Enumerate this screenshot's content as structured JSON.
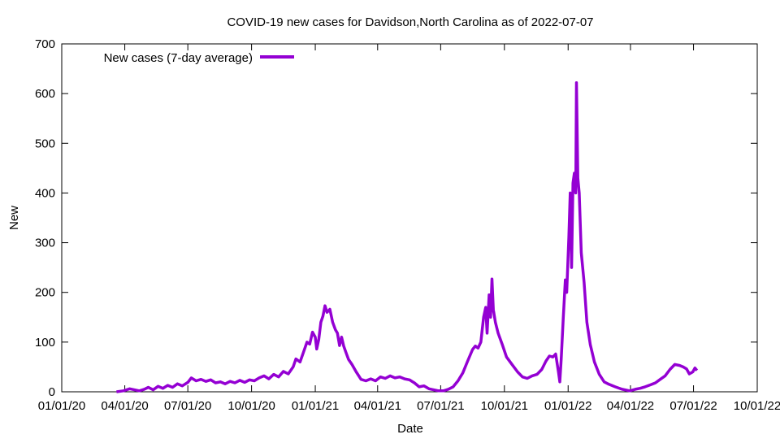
{
  "chart_data": {
    "type": "line",
    "title": "COVID-19 new cases for Davidson,North Carolina as of 2022-07-07",
    "xlabel": "Date",
    "ylabel": "New",
    "xlim": [
      "2020-01-01",
      "2022-10-01"
    ],
    "ylim": [
      0,
      700
    ],
    "x_ticks": [
      "01/01/20",
      "04/01/20",
      "07/01/20",
      "10/01/20",
      "01/01/21",
      "04/01/21",
      "07/01/21",
      "10/01/21",
      "01/01/22",
      "04/01/22",
      "07/01/22",
      "10/01/22"
    ],
    "y_ticks": [
      0,
      100,
      200,
      300,
      400,
      500,
      600,
      700
    ],
    "grid": false,
    "legend_position": "top-left",
    "series": [
      {
        "name": "New cases (7-day average)",
        "color": "#9400d3",
        "points": [
          [
            "2020-03-20",
            0
          ],
          [
            "2020-03-30",
            2
          ],
          [
            "2020-04-08",
            6
          ],
          [
            "2020-04-15",
            4
          ],
          [
            "2020-04-22",
            2
          ],
          [
            "2020-04-29",
            5
          ],
          [
            "2020-05-05",
            9
          ],
          [
            "2020-05-12",
            4
          ],
          [
            "2020-05-19",
            11
          ],
          [
            "2020-05-26",
            7
          ],
          [
            "2020-06-02",
            13
          ],
          [
            "2020-06-09",
            9
          ],
          [
            "2020-06-16",
            16
          ],
          [
            "2020-06-23",
            12
          ],
          [
            "2020-07-01",
            19
          ],
          [
            "2020-07-06",
            28
          ],
          [
            "2020-07-13",
            22
          ],
          [
            "2020-07-20",
            25
          ],
          [
            "2020-07-27",
            21
          ],
          [
            "2020-08-03",
            24
          ],
          [
            "2020-08-10",
            18
          ],
          [
            "2020-08-17",
            20
          ],
          [
            "2020-08-24",
            16
          ],
          [
            "2020-08-31",
            21
          ],
          [
            "2020-09-07",
            18
          ],
          [
            "2020-09-14",
            23
          ],
          [
            "2020-09-21",
            19
          ],
          [
            "2020-09-28",
            24
          ],
          [
            "2020-10-05",
            22
          ],
          [
            "2020-10-12",
            28
          ],
          [
            "2020-10-19",
            32
          ],
          [
            "2020-10-26",
            26
          ],
          [
            "2020-11-02",
            35
          ],
          [
            "2020-11-09",
            30
          ],
          [
            "2020-11-16",
            41
          ],
          [
            "2020-11-23",
            36
          ],
          [
            "2020-11-30",
            50
          ],
          [
            "2020-12-04",
            66
          ],
          [
            "2020-12-10",
            60
          ],
          [
            "2020-12-15",
            80
          ],
          [
            "2020-12-20",
            100
          ],
          [
            "2020-12-24",
            96
          ],
          [
            "2020-12-28",
            120
          ],
          [
            "2021-01-01",
            110
          ],
          [
            "2021-01-03",
            86
          ],
          [
            "2021-01-06",
            105
          ],
          [
            "2021-01-09",
            140
          ],
          [
            "2021-01-12",
            152
          ],
          [
            "2021-01-15",
            173
          ],
          [
            "2021-01-18",
            160
          ],
          [
            "2021-01-22",
            166
          ],
          [
            "2021-01-26",
            140
          ],
          [
            "2021-01-30",
            125
          ],
          [
            "2021-02-02",
            118
          ],
          [
            "2021-02-05",
            93
          ],
          [
            "2021-02-08",
            110
          ],
          [
            "2021-02-11",
            92
          ],
          [
            "2021-02-14",
            80
          ],
          [
            "2021-02-18",
            65
          ],
          [
            "2021-02-23",
            55
          ],
          [
            "2021-03-01",
            40
          ],
          [
            "2021-03-08",
            25
          ],
          [
            "2021-03-15",
            22
          ],
          [
            "2021-03-22",
            26
          ],
          [
            "2021-03-29",
            22
          ],
          [
            "2021-04-05",
            30
          ],
          [
            "2021-04-12",
            27
          ],
          [
            "2021-04-19",
            32
          ],
          [
            "2021-04-26",
            28
          ],
          [
            "2021-05-03",
            30
          ],
          [
            "2021-05-10",
            26
          ],
          [
            "2021-05-17",
            24
          ],
          [
            "2021-05-24",
            18
          ],
          [
            "2021-05-31",
            10
          ],
          [
            "2021-06-07",
            12
          ],
          [
            "2021-06-14",
            6
          ],
          [
            "2021-06-21",
            4
          ],
          [
            "2021-06-28",
            2
          ],
          [
            "2021-07-05",
            2
          ],
          [
            "2021-07-12",
            5
          ],
          [
            "2021-07-19",
            10
          ],
          [
            "2021-07-26",
            22
          ],
          [
            "2021-08-02",
            38
          ],
          [
            "2021-08-09",
            62
          ],
          [
            "2021-08-16",
            85
          ],
          [
            "2021-08-20",
            92
          ],
          [
            "2021-08-24",
            88
          ],
          [
            "2021-08-28",
            100
          ],
          [
            "2021-09-01",
            150
          ],
          [
            "2021-09-04",
            170
          ],
          [
            "2021-09-06",
            118
          ],
          [
            "2021-09-09",
            195
          ],
          [
            "2021-09-11",
            150
          ],
          [
            "2021-09-13",
            227
          ],
          [
            "2021-09-15",
            165
          ],
          [
            "2021-09-18",
            140
          ],
          [
            "2021-09-22",
            118
          ],
          [
            "2021-09-28",
            95
          ],
          [
            "2021-10-04",
            70
          ],
          [
            "2021-10-12",
            55
          ],
          [
            "2021-10-20",
            40
          ],
          [
            "2021-10-27",
            30
          ],
          [
            "2021-11-03",
            27
          ],
          [
            "2021-11-10",
            32
          ],
          [
            "2021-11-17",
            35
          ],
          [
            "2021-11-24",
            45
          ],
          [
            "2021-11-30",
            62
          ],
          [
            "2021-12-05",
            72
          ],
          [
            "2021-12-10",
            70
          ],
          [
            "2021-12-14",
            76
          ],
          [
            "2021-12-18",
            40
          ],
          [
            "2021-12-20",
            20
          ],
          [
            "2021-12-22",
            65
          ],
          [
            "2021-12-25",
            150
          ],
          [
            "2021-12-28",
            225
          ],
          [
            "2021-12-30",
            200
          ],
          [
            "2022-01-02",
            310
          ],
          [
            "2022-01-04",
            400
          ],
          [
            "2022-01-06",
            250
          ],
          [
            "2022-01-08",
            420
          ],
          [
            "2022-01-10",
            440
          ],
          [
            "2022-01-12",
            400
          ],
          [
            "2022-01-13",
            622
          ],
          [
            "2022-01-15",
            430
          ],
          [
            "2022-01-17",
            400
          ],
          [
            "2022-01-20",
            280
          ],
          [
            "2022-01-24",
            220
          ],
          [
            "2022-01-28",
            140
          ],
          [
            "2022-02-02",
            95
          ],
          [
            "2022-02-08",
            60
          ],
          [
            "2022-02-15",
            35
          ],
          [
            "2022-02-22",
            20
          ],
          [
            "2022-03-01",
            15
          ],
          [
            "2022-03-10",
            10
          ],
          [
            "2022-03-20",
            5
          ],
          [
            "2022-03-31",
            2
          ],
          [
            "2022-04-08",
            5
          ],
          [
            "2022-04-15",
            7
          ],
          [
            "2022-04-22",
            10
          ],
          [
            "2022-04-30",
            14
          ],
          [
            "2022-05-07",
            18
          ],
          [
            "2022-05-14",
            25
          ],
          [
            "2022-05-21",
            32
          ],
          [
            "2022-05-28",
            45
          ],
          [
            "2022-06-04",
            55
          ],
          [
            "2022-06-11",
            53
          ],
          [
            "2022-06-16",
            50
          ],
          [
            "2022-06-21",
            46
          ],
          [
            "2022-06-25",
            36
          ],
          [
            "2022-06-30",
            40
          ],
          [
            "2022-07-03",
            48
          ],
          [
            "2022-07-06",
            43
          ]
        ]
      }
    ]
  }
}
